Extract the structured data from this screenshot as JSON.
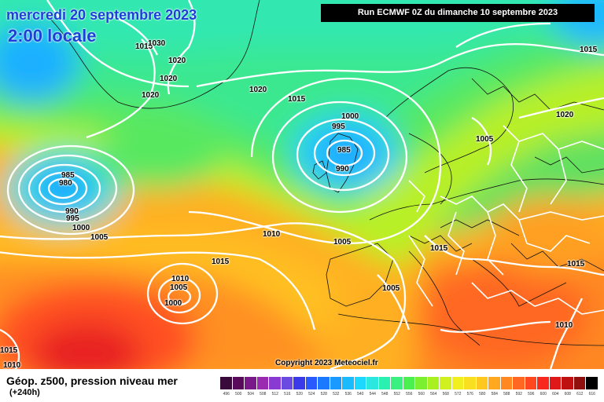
{
  "header": {
    "date_title": "mercredi 20 septembre 2023",
    "time_title": "2:00 locale",
    "run_info": "Run ECMWF 0Z du dimanche 10 septembre 2023"
  },
  "copyright": "Copyright 2023 Meteociel.fr",
  "isobar_labels": [
    {
      "id": "l1",
      "text": "1015"
    },
    {
      "id": "l2",
      "text": "1030"
    },
    {
      "id": "l3",
      "text": "1020"
    },
    {
      "id": "l4",
      "text": "1020"
    },
    {
      "id": "l5",
      "text": "1020"
    },
    {
      "id": "l6",
      "text": "1020"
    },
    {
      "id": "l7",
      "text": "1015"
    },
    {
      "id": "l8",
      "text": "1000"
    },
    {
      "id": "l9",
      "text": "995"
    },
    {
      "id": "l10",
      "text": "985"
    },
    {
      "id": "l11",
      "text": "990"
    },
    {
      "id": "l12",
      "text": "985"
    },
    {
      "id": "l13",
      "text": "980"
    },
    {
      "id": "l14",
      "text": "990"
    },
    {
      "id": "l15",
      "text": "995"
    },
    {
      "id": "l16",
      "text": "1000"
    },
    {
      "id": "l17",
      "text": "1005"
    },
    {
      "id": "l18",
      "text": "1010"
    },
    {
      "id": "l19",
      "text": "1005"
    },
    {
      "id": "l20",
      "text": "1015"
    },
    {
      "id": "l21",
      "text": "1010"
    },
    {
      "id": "l22",
      "text": "1005"
    },
    {
      "id": "l23",
      "text": "1000"
    },
    {
      "id": "l24",
      "text": "1005"
    },
    {
      "id": "l25",
      "text": "1015"
    },
    {
      "id": "l26",
      "text": "1020"
    },
    {
      "id": "l27",
      "text": "1005"
    },
    {
      "id": "l28",
      "text": "1015"
    },
    {
      "id": "l29",
      "text": "1015"
    },
    {
      "id": "l30",
      "text": "1010"
    },
    {
      "id": "l31",
      "text": "1015"
    },
    {
      "id": "l32",
      "text": "1010"
    }
  ],
  "legend": {
    "title": "Géop. z500, pression niveau mer",
    "subtitle": "(+240h)",
    "labels": [
      "496",
      "500",
      "504",
      "508",
      "512",
      "516",
      "520",
      "524",
      "528",
      "532",
      "536",
      "540",
      "544",
      "548",
      "552",
      "556",
      "560",
      "564",
      "568",
      "572",
      "576",
      "580",
      "584",
      "588",
      "592",
      "596",
      "600",
      "604",
      "608",
      "612",
      "616"
    ],
    "colors": [
      "#3a0a3a",
      "#5a0a5a",
      "#7a1a8a",
      "#9a2ab0",
      "#8a3ad0",
      "#6a4ae0",
      "#3a3ae8",
      "#2a5aff",
      "#1a7aff",
      "#1a9aff",
      "#1abaff",
      "#1ad8ff",
      "#2ae8e0",
      "#2af0b0",
      "#3af080",
      "#4af050",
      "#7af030",
      "#a8f020",
      "#d0f020",
      "#f0f020",
      "#f8e020",
      "#ffc820",
      "#ffa820",
      "#ff8820",
      "#ff6820",
      "#ff4820",
      "#f82a20",
      "#e01818",
      "#c01010",
      "#901010",
      "#000000"
    ]
  }
}
